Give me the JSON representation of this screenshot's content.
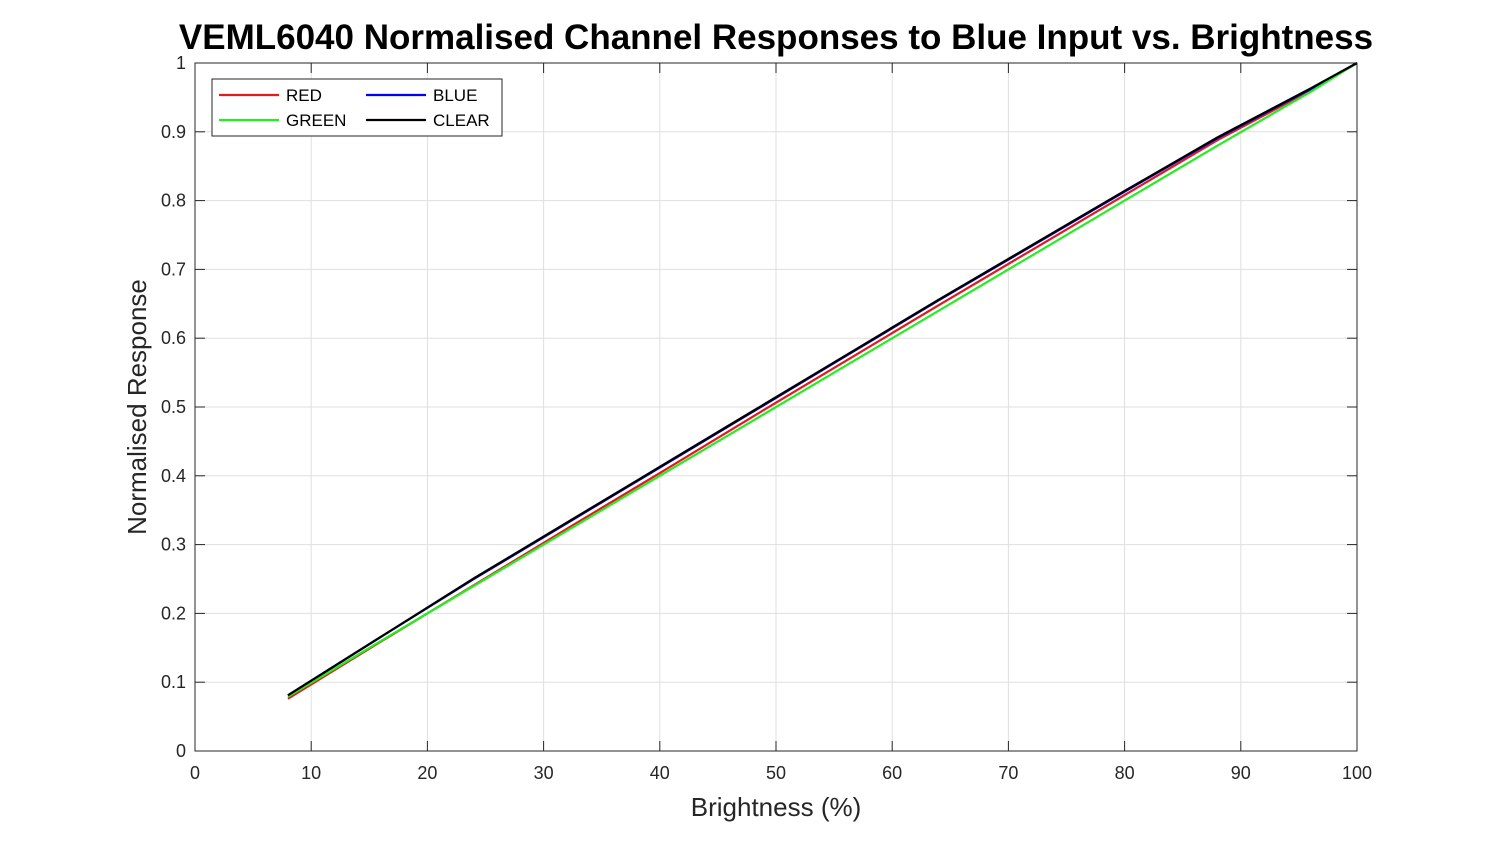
{
  "chart_data": {
    "type": "line",
    "title": "VEML6040 Normalised Channel Responses to Blue Input vs. Brightness",
    "xlabel": "Brightness (%)",
    "ylabel": "Normalised Response",
    "xlim": [
      0,
      100
    ],
    "ylim": [
      0,
      1
    ],
    "xticks": [
      0,
      10,
      20,
      30,
      40,
      50,
      60,
      70,
      80,
      90,
      100
    ],
    "xtick_labels": [
      "0",
      "10",
      "20",
      "30",
      "40",
      "50",
      "60",
      "70",
      "80",
      "90",
      "100"
    ],
    "yticks": [
      0,
      0.1,
      0.2,
      0.3,
      0.4,
      0.5,
      0.6,
      0.7,
      0.8,
      0.9,
      1
    ],
    "ytick_labels": [
      "0",
      "0.1",
      "0.2",
      "0.3",
      "0.4",
      "0.5",
      "0.6",
      "0.7",
      "0.8",
      "0.9",
      "1"
    ],
    "grid": true,
    "legend_position": "top-left",
    "series": [
      {
        "name": "RED",
        "color": "#e31a1c",
        "x": [
          8,
          16,
          24,
          32,
          40,
          48,
          56,
          64,
          72,
          80,
          88,
          96,
          100
        ],
        "y": [
          0.076,
          0.159,
          0.241,
          0.323,
          0.404,
          0.486,
          0.567,
          0.648,
          0.728,
          0.808,
          0.888,
          0.96,
          1.0
        ]
      },
      {
        "name": "BLUE",
        "color": "#0000ff",
        "x": [
          8,
          16,
          24,
          32,
          40,
          48,
          56,
          64,
          72,
          80,
          88,
          96,
          100
        ],
        "y": [
          0.081,
          0.166,
          0.25,
          0.331,
          0.412,
          0.493,
          0.574,
          0.655,
          0.734,
          0.813,
          0.891,
          0.962,
          1.0
        ]
      },
      {
        "name": "GREEN",
        "color": "#22ee22",
        "x": [
          8,
          16,
          24,
          32,
          40,
          48,
          56,
          64,
          72,
          80,
          88,
          96,
          100
        ],
        "y": [
          0.079,
          0.16,
          0.24,
          0.32,
          0.4,
          0.48,
          0.56,
          0.64,
          0.72,
          0.8,
          0.88,
          0.958,
          1.0
        ]
      },
      {
        "name": "CLEAR",
        "color": "#000000",
        "x": [
          8,
          16,
          24,
          32,
          40,
          48,
          56,
          64,
          72,
          80,
          88,
          96,
          100
        ],
        "y": [
          0.081,
          0.166,
          0.251,
          0.332,
          0.413,
          0.494,
          0.575,
          0.656,
          0.735,
          0.814,
          0.892,
          0.963,
          1.0
        ]
      }
    ],
    "legend_order": [
      "RED",
      "BLUE",
      "GREEN",
      "CLEAR"
    ]
  }
}
